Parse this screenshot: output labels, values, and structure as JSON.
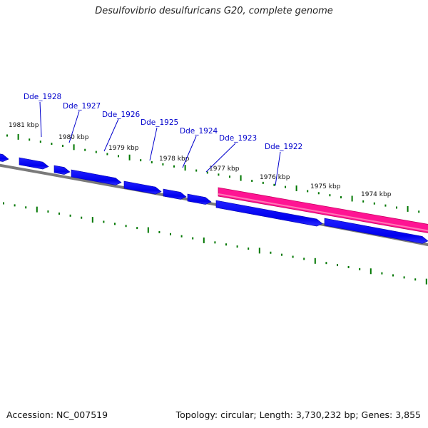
{
  "title": "Desulfovibrio desulfuricans G20, complete genome",
  "accession": "Accession: NC_007519",
  "topology": "Topology: circular; Length: 3,730,232 bp; Genes: 3,855",
  "colors": {
    "gene_forward": "#0000ee",
    "gene_highlight": "#ff1493",
    "backbone": "#808080",
    "tick": "#007700",
    "label": "#0000cc"
  },
  "kbp_labels": [
    "1981 kbp",
    "1980 kbp",
    "1979 kbp",
    "1978 kbp",
    "1977 kbp",
    "1976 kbp",
    "1975 kbp",
    "1974 kbp"
  ],
  "gene_labels": [
    "Dde_1928",
    "Dde_1927",
    "Dde_1926",
    "Dde_1925",
    "Dde_1924",
    "Dde_1923",
    "Dde_1922"
  ],
  "features": {
    "gene_arrows": [
      "gene-arrow",
      "gene-arrow",
      "gene-arrow",
      "gene-arrow",
      "gene-arrow",
      "gene-arrow",
      "gene-arrow",
      "gene-arrow",
      "gene-arrow",
      "gene-arrow"
    ],
    "highlight_gene": "highlighted-gene"
  }
}
